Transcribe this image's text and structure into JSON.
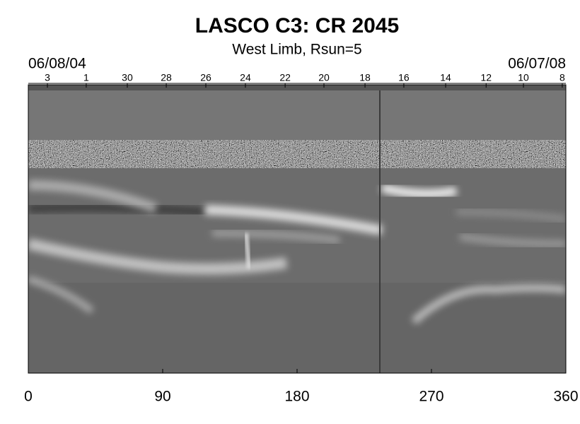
{
  "chart_data": {
    "type": "image",
    "title": "LASCO C3: CR 2045",
    "subtitle": "West Limb, Rsun=5",
    "start_date": "06/08/04",
    "end_date": "06/07/08",
    "xlim": [
      0,
      360
    ],
    "xticks": [
      0,
      90,
      180,
      270,
      360
    ],
    "top_ticks": [
      {
        "value": 12.8,
        "label": "3"
      },
      {
        "value": 38.8,
        "label": "1"
      },
      {
        "value": 66.3,
        "label": "30"
      },
      {
        "value": 92.4,
        "label": "28"
      },
      {
        "value": 118.9,
        "label": "26"
      },
      {
        "value": 145.4,
        "label": "24"
      },
      {
        "value": 172,
        "label": "22"
      },
      {
        "value": 198,
        "label": "20"
      },
      {
        "value": 225.5,
        "label": "18"
      },
      {
        "value": 251.5,
        "label": "16"
      },
      {
        "value": 279.5,
        "label": "14"
      },
      {
        "value": 306.6,
        "label": "12"
      },
      {
        "value": 331.6,
        "label": "10"
      },
      {
        "value": 357.6,
        "label": "8"
      }
    ]
  }
}
